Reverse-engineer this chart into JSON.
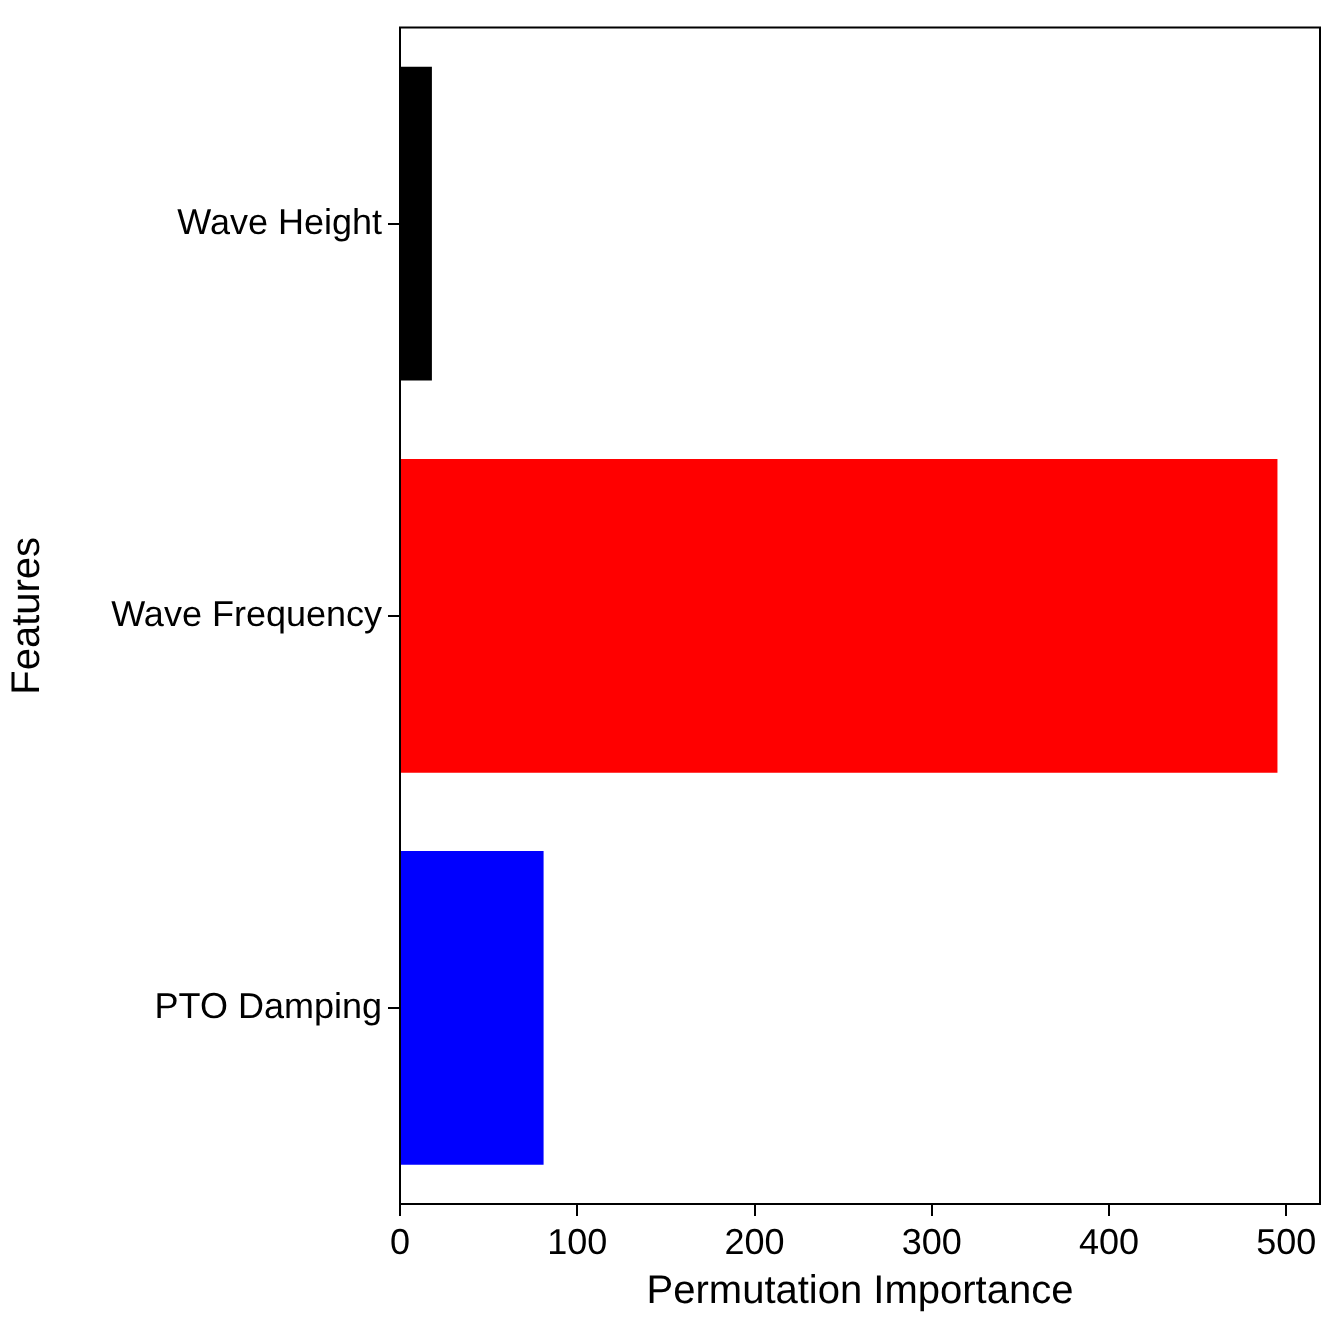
{
  "chart_data": {
    "type": "bar",
    "orientation": "horizontal",
    "xlabel": "Permutation Importance",
    "ylabel": "Features",
    "categories": [
      "Wave Height",
      "Wave Frequency",
      "PTO Damping"
    ],
    "values": [
      18,
      495,
      81
    ],
    "colors": [
      "#000000",
      "#ff0000",
      "#0000ff"
    ],
    "xlim": [
      0,
      519
    ],
    "xticks": [
      0,
      100,
      200,
      300,
      400,
      500
    ],
    "grid": false,
    "legend": false
  }
}
